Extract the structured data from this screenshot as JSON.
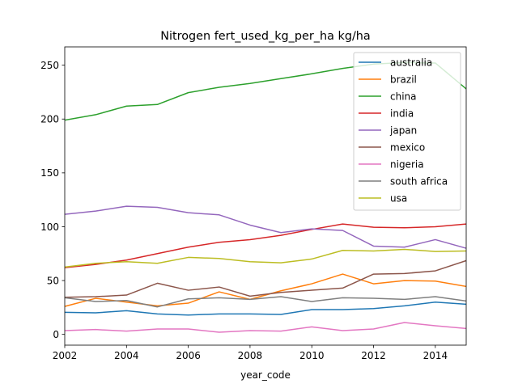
{
  "chart_data": {
    "type": "line",
    "title": "Nitrogen fert_used_kg_per_ha kg/ha",
    "xlabel": "year_code",
    "ylabel": "",
    "xlim": [
      2002,
      2015
    ],
    "ylim": [
      -10,
      267
    ],
    "x_ticks": [
      2002,
      2004,
      2006,
      2008,
      2010,
      2012,
      2014
    ],
    "y_ticks": [
      0,
      50,
      100,
      150,
      200,
      250
    ],
    "grid": false,
    "legend_position": "top-right",
    "x": [
      2002,
      2003,
      2004,
      2005,
      2006,
      2007,
      2008,
      2009,
      2010,
      2011,
      2012,
      2013,
      2014,
      2015
    ],
    "series": [
      {
        "name": "australia",
        "color": "#1f77b4",
        "values": [
          20.5,
          20,
          22,
          19,
          18,
          19,
          19,
          18.5,
          23,
          23,
          24,
          26.5,
          30,
          28
        ]
      },
      {
        "name": "brazil",
        "color": "#ff7f0e",
        "values": [
          26,
          33.5,
          30,
          26.5,
          29,
          39.5,
          32.5,
          40.5,
          47,
          56,
          47,
          50,
          49.5,
          44.5
        ]
      },
      {
        "name": "china",
        "color": "#2ca02c",
        "values": [
          199,
          204,
          212,
          213.5,
          224.5,
          229.5,
          233,
          237.5,
          242,
          247,
          251,
          252.5,
          252,
          228
        ]
      },
      {
        "name": "india",
        "color": "#d62728",
        "values": [
          62,
          65,
          69,
          75,
          81,
          85.5,
          88,
          92,
          97.5,
          102.5,
          99.5,
          99,
          100,
          102.5
        ]
      },
      {
        "name": "japan",
        "color": "#9467bd",
        "values": [
          111.5,
          114.5,
          119,
          118,
          113,
          111,
          101.5,
          94.5,
          98,
          96.5,
          82,
          81,
          88,
          80
        ]
      },
      {
        "name": "mexico",
        "color": "#8c564b",
        "values": [
          34.5,
          35,
          36.5,
          47.5,
          41,
          44,
          35.5,
          39,
          41,
          43,
          56,
          56.5,
          59,
          68.5
        ]
      },
      {
        "name": "nigeria",
        "color": "#e377c2",
        "values": [
          3.5,
          4.5,
          3,
          5,
          5,
          2,
          3.5,
          3,
          7,
          3.5,
          5,
          11,
          8,
          5.5
        ]
      },
      {
        "name": "south africa",
        "color": "#7f7f7f",
        "values": [
          34,
          30.5,
          31.5,
          25.5,
          33,
          34,
          32.5,
          35,
          30.5,
          34,
          33.5,
          32.5,
          35,
          31
        ]
      },
      {
        "name": "usa",
        "color": "#bcbd22",
        "values": [
          62.5,
          66,
          67.5,
          66,
          71.5,
          70.5,
          67.5,
          66.5,
          70,
          78,
          77.5,
          79,
          77,
          77.5
        ]
      }
    ]
  }
}
